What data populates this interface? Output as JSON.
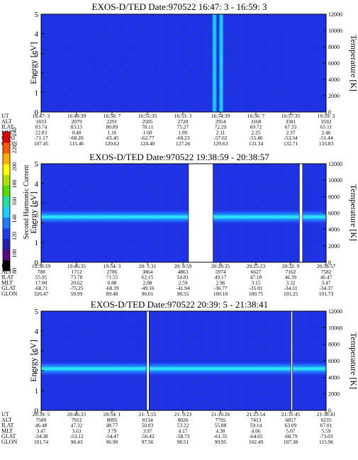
{
  "chart_data": [
    {
      "type": "heatmap",
      "title": "EXOS-D/TED   Date:970522  16:47: 3 - 16:59: 3",
      "ylabel": "Energy [eV]",
      "y2label": "Temperature [K]",
      "ylim": [
        0,
        5
      ],
      "y2lim": [
        0,
        12000
      ],
      "yticks": [
        "0",
        "1",
        "2",
        "3",
        "4",
        "5"
      ],
      "y2ticks": [
        "0",
        "2000",
        "4000",
        "6000",
        "8000",
        "10000",
        "12000"
      ],
      "orbit_rows": [
        "UT",
        "ALT",
        "ILAT",
        "MLT",
        "GLAT",
        "GLON"
      ],
      "orbit_columns": [
        [
          "16:47: 3",
          "1833",
          "83.74",
          "22.83",
          "-71.17",
          "107.45"
        ],
        [
          "16:48:39",
          "2079",
          "83.15",
          "0.40",
          "-68.20",
          "115.46"
        ],
        [
          "16:50: 7",
          "2291",
          "80.89",
          "1.16",
          "-65.45",
          "120.62"
        ],
        [
          "16:51:35",
          "2505",
          "78.11",
          "1.60",
          "-62.77",
          "124.40"
        ],
        [
          "16:53: 3",
          "2720",
          "75.27",
          "1.89",
          "-60.23",
          "127.26"
        ],
        [
          "16:54:39",
          "2954",
          "72.29",
          "2.11",
          "-57.62",
          "129.63"
        ],
        [
          "16:56: 7",
          "3168",
          "69.72",
          "2.25",
          "-55.40",
          "131.34"
        ],
        [
          "16:57:35",
          "3381",
          "67.33",
          "2.37",
          "-53.34",
          "132.71"
        ],
        [
          "16:59: 3",
          "3592",
          "65.11",
          "2.46",
          "-51.44",
          "133.83"
        ]
      ],
      "features": {
        "band_energy_ev": null,
        "strong_vertical_bursts_utc": [
          "16:54:21",
          "16:54:38"
        ],
        "gap_intervals": []
      }
    },
    {
      "type": "heatmap",
      "title": "EXOS-D/TED   Date:970522  19:38:59 - 20:38:57",
      "ylabel": "Energy [eV]",
      "y2label": "Temperature [K]",
      "ylim": [
        0,
        5
      ],
      "y2lim": [
        0,
        12000
      ],
      "yticks": [
        "0",
        "1",
        "2",
        "3",
        "4",
        "5"
      ],
      "y2ticks": [
        "0",
        "2000",
        "4000",
        "6000",
        "8000",
        "10000",
        "12000"
      ],
      "orbit_rows": [
        "UT",
        "ALT",
        "ILAT",
        "MLT",
        "GLAT",
        "GLON"
      ],
      "orbit_columns": [
        [
          "19:38:59",
          "788",
          "55.95",
          "17.00",
          "-68.71",
          "326.47"
        ],
        [
          "19:46:35",
          "1712",
          "73.78",
          "20.62",
          "-75.25",
          "59.99"
        ],
        [
          "19:54: 3",
          "2786",
          "71.55",
          "0.88",
          "-60.39",
          "89.48"
        ],
        [
          "20: 1:31",
          "3864",
          "62.15",
          "2.08",
          "-49.16",
          "96.01"
        ],
        [
          "20: 8:59",
          "4863",
          "54.81",
          "2.59",
          "-41.94",
          "98.55"
        ],
        [
          "20:18:35",
          "5974",
          "49.17",
          "2.96",
          "-36.77",
          "100.10"
        ],
        [
          "20:25:23",
          "6627",
          "47.18",
          "3.15",
          "-35.01",
          "100.75"
        ],
        [
          "20:32: 9",
          "7162",
          "46.39",
          "3.32",
          "-34.31",
          "101.25"
        ],
        [
          "20:38:57",
          "7582",
          "46.47",
          "3.47",
          "-34.37",
          "101.73"
        ]
      ],
      "features": {
        "band_energy_ev": 2.3,
        "gap_intervals": [
          [
            "20:10:00",
            "20:15:10"
          ],
          [
            "20:33:20",
            "20:34:00"
          ]
        ]
      }
    },
    {
      "type": "heatmap",
      "title": "EXOS-D/TED   Date:970522  20:39: 5 - 21:38:41",
      "ylabel": "Energy [eV]",
      "y2label": "Temperature [K]",
      "ylim": [
        0,
        5
      ],
      "y2lim": [
        0,
        12000
      ],
      "yticks": [
        "0",
        "1",
        "2",
        "3",
        "4",
        "5"
      ],
      "y2ticks": [
        "0",
        "2000",
        "4000",
        "6000",
        "8000",
        "10000",
        "12000"
      ],
      "orbit_rows": [
        "UT",
        "ALT",
        "ILAT",
        "MLT",
        "GLAT",
        "GLON"
      ],
      "orbit_columns": [
        [
          "20:39: 5",
          "7589",
          "46.48",
          "3.47",
          "-34.38",
          "101.74"
        ],
        [
          "20:46:33",
          "7912",
          "47.32",
          "3.63",
          "-53.12",
          "98.43"
        ],
        [
          "20:54: 1",
          "8095",
          "48.77",
          "3.79",
          "-54.47",
          "96.90"
        ],
        [
          "21: 1:55",
          "8134",
          "50.83",
          "3.97",
          "-56.42",
          "97.56"
        ],
        [
          "21: 9:23",
          "8026",
          "53.22",
          "4.17",
          "-58.73",
          "98.51"
        ],
        [
          "21:16:26",
          "7795",
          "55.88",
          "4.38",
          "-61.35",
          "99.95"
        ],
        [
          "21:23:54",
          "7413",
          "59.14",
          "4.66",
          "-64.65",
          "102.49"
        ],
        [
          "21:31:45",
          "6857",
          "63.09",
          "5.07",
          "-68.79",
          "107.38"
        ],
        [
          "21:38:41",
          "6235",
          "67.01",
          "5.59",
          "-73.03",
          "115.96"
        ]
      ],
      "features": {
        "band_energy_ev": 2.1,
        "gap_intervals": [
          [
            "21: 1:10",
            "21: 1:40"
          ],
          [
            "21:31:20",
            "21:31:40"
          ]
        ]
      }
    }
  ],
  "colorbar": {
    "label": "Second Harmonic Current",
    "min": 80,
    "max": 240,
    "ticks": [
      "80",
      "100",
      "120",
      "140",
      "160",
      "180",
      "200",
      "220",
      "240"
    ],
    "colors": [
      "#000000",
      "#5a0a7a",
      "#2020b0",
      "#1e3cf0",
      "#1e7cff",
      "#18d0ff",
      "#22e0a0",
      "#50e000",
      "#b0e000",
      "#ffff00",
      "#ffb000",
      "#ff5a00",
      "#e00000"
    ]
  }
}
